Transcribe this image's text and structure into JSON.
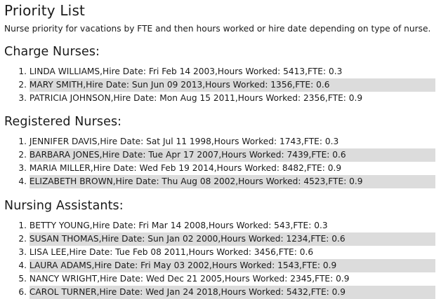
{
  "title": "Priority List",
  "subtitle": "Nurse priority for vacations by FTE and then hours worked or hire date depending on type of nurse.",
  "sections": [
    {
      "heading": "Charge Nurses:",
      "items": [
        {
          "num": "1.",
          "text": "LINDA WILLIAMS,Hire Date: Fri Feb 14 2003,Hours Worked: 5413,FTE: 0.3"
        },
        {
          "num": "2.",
          "text": "MARY SMITH,Hire Date: Sun Jun 09 2013,Hours Worked: 1356,FTE: 0.6"
        },
        {
          "num": "3.",
          "text": "PATRICIA JOHNSON,Hire Date: Mon Aug 15 2011,Hours Worked: 2356,FTE: 0.9"
        }
      ]
    },
    {
      "heading": "Registered Nurses:",
      "items": [
        {
          "num": "1.",
          "text": "JENNIFER DAVIS,Hire Date: Sat Jul 11 1998,Hours Worked: 1743,FTE: 0.3"
        },
        {
          "num": "2.",
          "text": "BARBARA JONES,Hire Date: Tue Apr 17 2007,Hours Worked: 7439,FTE: 0.6"
        },
        {
          "num": "3.",
          "text": "MARIA MILLER,Hire Date: Wed Feb 19 2014,Hours Worked: 8482,FTE: 0.9"
        },
        {
          "num": "4.",
          "text": "ELIZABETH BROWN,Hire Date: Thu Aug 08 2002,Hours Worked: 4523,FTE: 0.9"
        }
      ]
    },
    {
      "heading": "Nursing Assistants:",
      "items": [
        {
          "num": "1.",
          "text": "BETTY YOUNG,Hire Date: Fri Mar 14 2008,Hours Worked: 543,FTE: 0.3"
        },
        {
          "num": "2.",
          "text": "SUSAN THOMAS,Hire Date: Sun Jan 02 2000,Hours Worked: 1234,FTE: 0.6"
        },
        {
          "num": "3.",
          "text": "LISA LEE,Hire Date: Tue Feb 08 2011,Hours Worked: 3456,FTE: 0.6"
        },
        {
          "num": "4.",
          "text": "LAURA ADAMS,Hire Date: Fri May 03 2002,Hours Worked: 1543,FTE: 0.9"
        },
        {
          "num": "5.",
          "text": "NANCY WRIGHT,Hire Date: Wed Dec 21 2005,Hours Worked: 2345,FTE: 0.9"
        },
        {
          "num": "6.",
          "text": "CAROL TURNER,Hire Date: Wed Jan 24 2018,Hours Worked: 5432,FTE: 0.9"
        }
      ]
    }
  ]
}
